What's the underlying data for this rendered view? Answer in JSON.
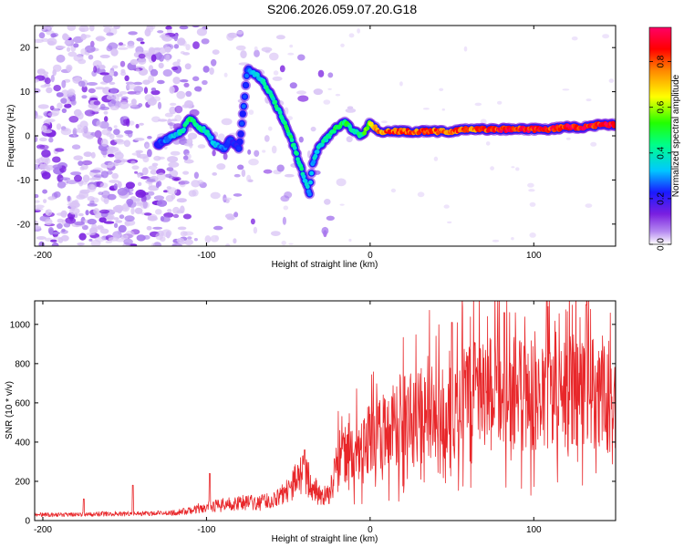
{
  "figure_title": "S206.2026.059.07.20.G18",
  "chart_data": [
    {
      "type": "heatmap",
      "title": "S206.2026.059.07.20.G18",
      "xlabel": "Height of straight line (km)",
      "ylabel": "Frequency (Hz)",
      "xlim": [
        -205,
        150
      ],
      "ylim": [
        -25,
        25
      ],
      "xticks": [
        -200,
        -100,
        0,
        100
      ],
      "yticks": [
        -20,
        -10,
        0,
        10,
        20
      ],
      "colorbar": {
        "label": "Normalized spectral amplitude",
        "range": [
          0.0,
          0.95
        ],
        "ticks": [
          0.0,
          0.2,
          0.4,
          0.6,
          0.8
        ],
        "colormap": [
          "#ffffff",
          "#b488f0",
          "#7a1fe0",
          "#1a1aff",
          "#00c8ff",
          "#00ff88",
          "#22ff00",
          "#ffff00",
          "#ff8800",
          "#ff0000",
          "#ff0066"
        ]
      },
      "ridge": {
        "x": [
          -130,
          -115,
          -110,
          -105,
          -100,
          -95,
          -90,
          -85,
          -80,
          -75,
          -70,
          -65,
          -60,
          -55,
          -50,
          -45,
          -40,
          -37,
          -35,
          -32,
          -30,
          -25,
          -20,
          -15,
          -10,
          -5,
          0,
          5,
          10,
          20,
          30,
          40,
          50,
          60,
          70,
          80,
          90,
          100,
          110,
          120,
          130,
          140,
          150
        ],
        "y": [
          -2,
          1,
          4,
          2,
          1,
          -2,
          -3,
          -1,
          -3,
          15,
          14,
          12,
          9,
          5,
          1,
          -4,
          -10,
          -13,
          -6,
          -3,
          -2,
          0,
          2,
          3,
          1,
          0,
          3,
          1,
          1,
          1,
          1,
          1,
          1,
          1.5,
          1.5,
          1.5,
          1.5,
          1.5,
          1.5,
          2,
          2,
          2.5,
          2.5
        ],
        "amp": [
          0.3,
          0.45,
          0.55,
          0.5,
          0.45,
          0.4,
          0.35,
          0.3,
          0.3,
          0.35,
          0.4,
          0.45,
          0.5,
          0.5,
          0.5,
          0.5,
          0.45,
          0.4,
          0.4,
          0.45,
          0.45,
          0.5,
          0.55,
          0.55,
          0.5,
          0.5,
          0.7,
          0.8,
          0.85,
          0.85,
          0.85,
          0.85,
          0.85,
          0.85,
          0.85,
          0.9,
          0.9,
          0.9,
          0.9,
          0.9,
          0.9,
          0.92,
          0.92
        ]
      }
    },
    {
      "type": "line",
      "title": "",
      "xlabel": "Height of straight line (km)",
      "ylabel": "SNR (10 * v/v)",
      "xlim": [
        -205,
        150
      ],
      "ylim": [
        0,
        1120
      ],
      "xticks": [
        -200,
        -100,
        0,
        100
      ],
      "yticks": [
        0,
        200,
        400,
        600,
        800,
        1000
      ],
      "color": "#e8272a",
      "envelope": {
        "x": [
          -205,
          -180,
          -160,
          -140,
          -120,
          -110,
          -100,
          -90,
          -80,
          -70,
          -60,
          -50,
          -45,
          -40,
          -35,
          -30,
          -25,
          -20,
          -10,
          0,
          10,
          20,
          30,
          40,
          50,
          60,
          70,
          80,
          90,
          100,
          110,
          120,
          130,
          140,
          150
        ],
        "y": [
          30,
          30,
          35,
          35,
          40,
          50,
          70,
          80,
          90,
          90,
          100,
          150,
          210,
          240,
          170,
          120,
          130,
          310,
          380,
          420,
          470,
          510,
          540,
          580,
          610,
          620,
          640,
          660,
          650,
          640,
          650,
          660,
          650,
          630,
          600
        ]
      },
      "spikes": [
        {
          "x": -175,
          "y": 110
        },
        {
          "x": -145,
          "y": 180
        },
        {
          "x": -98,
          "y": 240
        },
        {
          "x": -40,
          "y": 360
        },
        {
          "x": 50,
          "y": 1010
        },
        {
          "x": 82,
          "y": 1060
        },
        {
          "x": 108,
          "y": 1125
        },
        {
          "x": 132,
          "y": 1100
        }
      ]
    }
  ]
}
